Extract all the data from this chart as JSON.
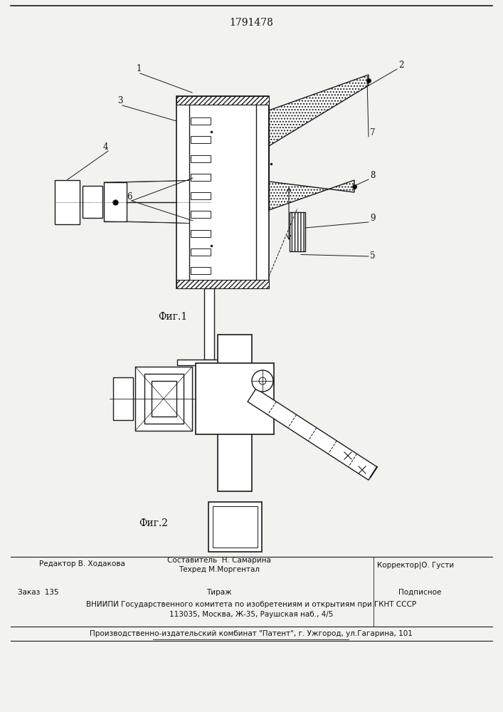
{
  "patent_number": "1791478",
  "fig1_label": "Фиг.1",
  "fig2_label": "Фиг.2",
  "footer_line1_left": "Редактор В. Ходакова",
  "footer_line1_center_top": "Составитель  Н. Самарина",
  "footer_line1_center_bot": "Техред М.Моргентал",
  "footer_line1_right": "Корректор|О. Густи",
  "footer_line2_left": "Заказ  135",
  "footer_line2_center": "Тираж",
  "footer_line2_right": "Подписное",
  "footer_line3": "ВНИИПИ Государственного комитета по изобретениям и открытиям при ГКНТ СССР",
  "footer_line4": "113035, Москва, Ж-35, Раушская наб., 4/5",
  "footer_line5": "Производственно-издательский комбинат \"Патент\", г. Ужгород, ул.Гагарина, 101",
  "bg_color": "#f2f2ee",
  "line_color": "#1a1a1a",
  "label_color": "#111111"
}
